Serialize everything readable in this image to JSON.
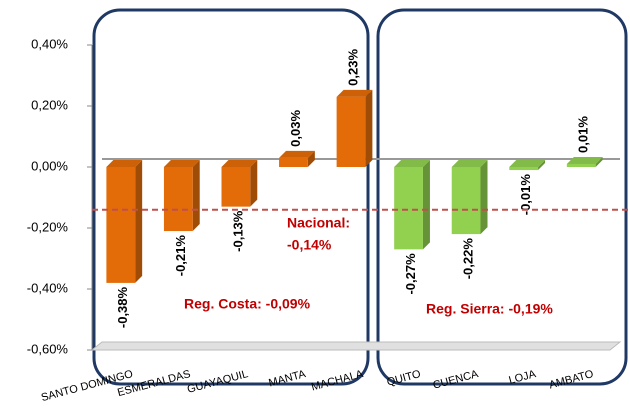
{
  "chart_data": {
    "type": "bar",
    "categories": [
      "SANTO DOMINGO",
      "ESMERALDAS",
      "GUAYAQUIL",
      "MANTA",
      "MACHALA",
      "QUITO",
      "CUENCA",
      "LOJA",
      "AMBATO"
    ],
    "values": [
      -0.38,
      -0.21,
      -0.13,
      0.03,
      0.23,
      -0.27,
      -0.22,
      -0.01,
      0.01
    ],
    "value_labels": [
      "-0,38%",
      "-0,21%",
      "-0,13%",
      "0,03%",
      "0,23%",
      "-0,27%",
      "-0,22%",
      "-0,01%",
      "0,01%"
    ],
    "colors": [
      "#e36c09",
      "#e36c09",
      "#e36c09",
      "#e36c09",
      "#e36c09",
      "#92d050",
      "#92d050",
      "#92d050",
      "#92d050"
    ],
    "ylim": [
      -0.6,
      0.4
    ],
    "yticks": [
      {
        "value": -0.6,
        "label": "-0,60%"
      },
      {
        "value": -0.4,
        "label": "-0,40%"
      },
      {
        "value": -0.2,
        "label": "-0,20%"
      },
      {
        "value": 0,
        "label": "0,00%"
      },
      {
        "value": 0.2,
        "label": "0,20%"
      },
      {
        "value": 0.4,
        "label": "0,40%"
      }
    ],
    "reference_line": {
      "value": -0.14,
      "label_lines": [
        "Nacional:",
        "-0,14%"
      ],
      "color": "#c0504d"
    },
    "annotations": [
      "Reg. Costa: -0,09%",
      "Reg. Sierra: -0,19%"
    ]
  }
}
